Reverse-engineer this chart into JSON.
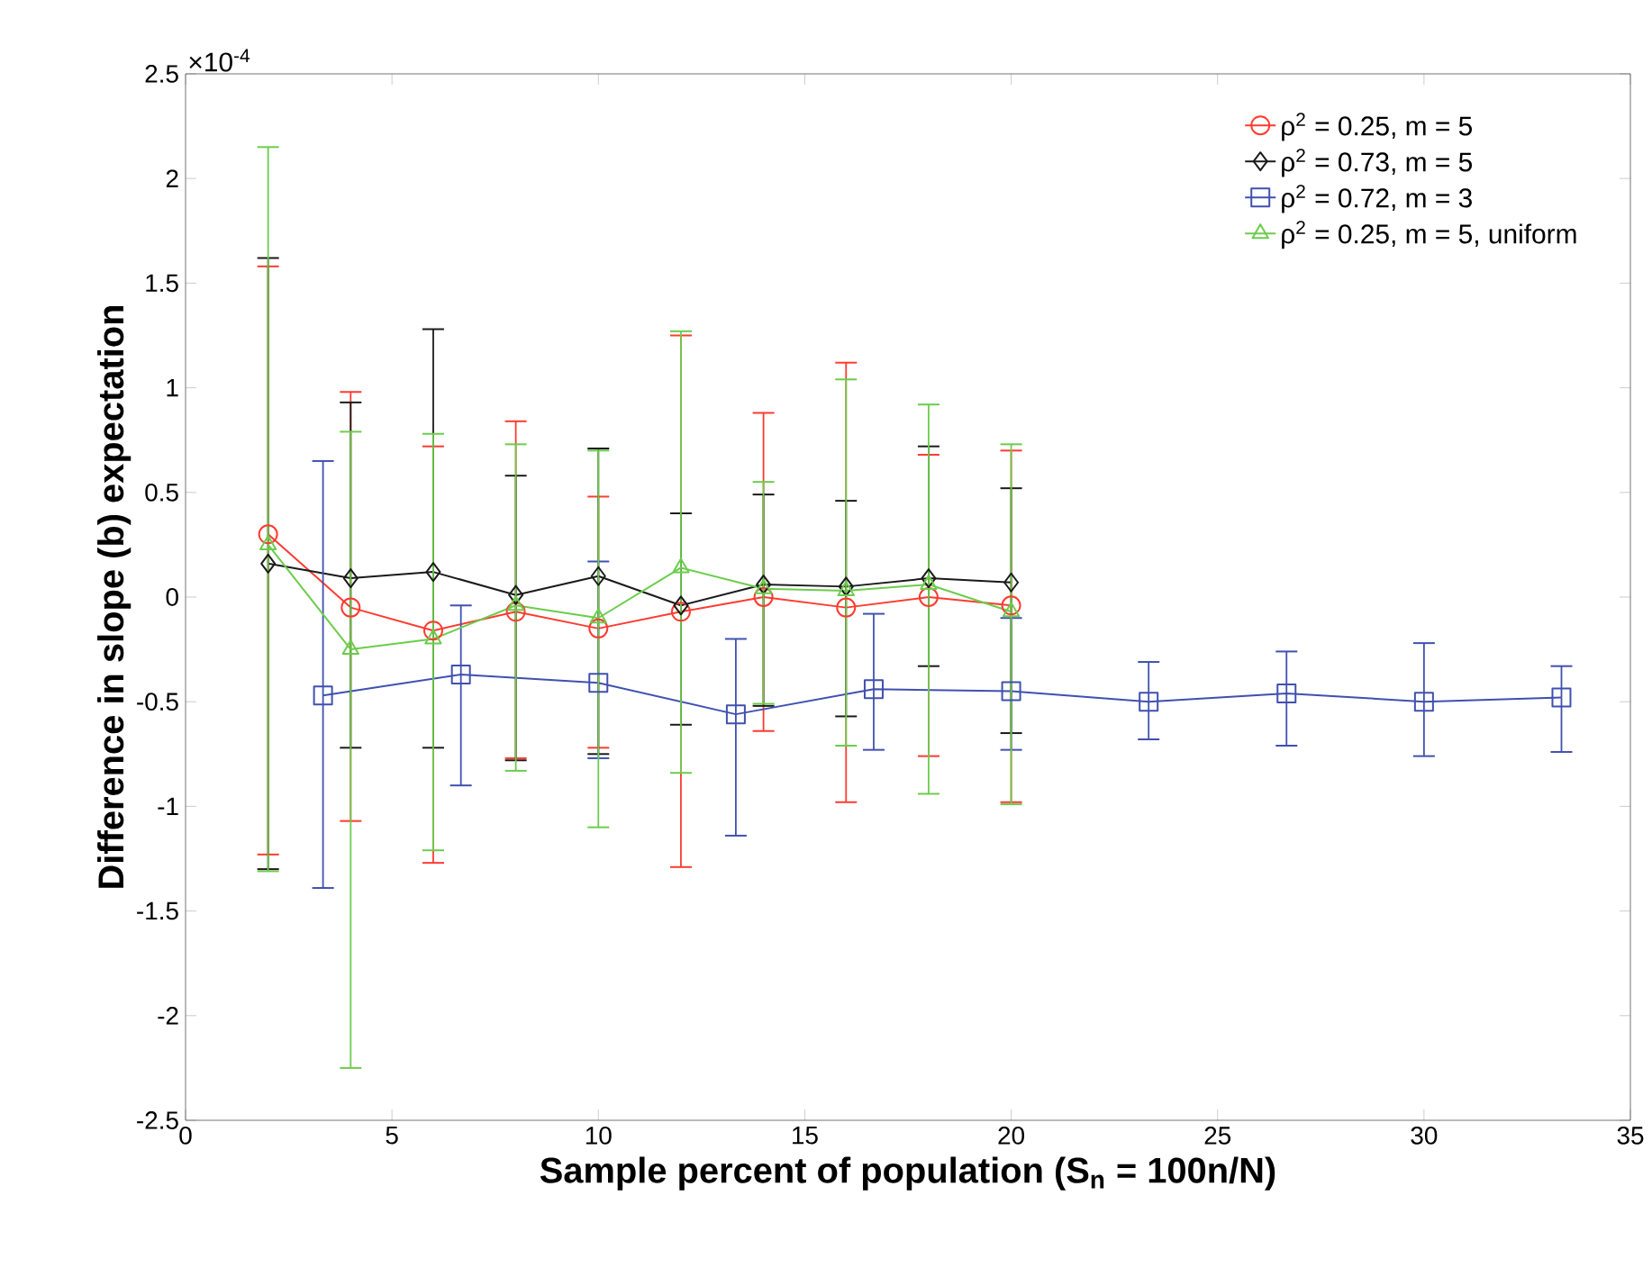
{
  "chart_data": {
    "type": "line",
    "xlabel": "Sample percent of population (S$_{n}$ = 100n/N)",
    "ylabel": "Difference in slope (b) expectation",
    "annotations": [
      "×10$^{-4}$"
    ],
    "xlim": [
      0,
      35
    ],
    "xticks": [
      0,
      5,
      10,
      15,
      20,
      25,
      30,
      35
    ],
    "ylim": [
      -2.5,
      2.5
    ],
    "yticks": [
      -2.5,
      -2,
      -1.5,
      -1,
      -0.5,
      0,
      0.5,
      1,
      1.5,
      2,
      2.5
    ],
    "legend": "top right",
    "line_style": "solid",
    "grid": false,
    "series": [
      {
        "name": "ρ$^{2}$ = 0.25, m = 5",
        "color": "#ff3b2f",
        "marker": "circle",
        "x": [
          2,
          4,
          6,
          8,
          10,
          12,
          14,
          16,
          18,
          20
        ],
        "values": [
          0.3,
          -0.05,
          -0.16,
          -0.07,
          -0.15,
          -0.07,
          0.0,
          -0.05,
          0.0,
          -0.04
        ],
        "errors": [
          [
            -1.23,
            1.58
          ],
          [
            -1.07,
            0.98
          ],
          [
            -1.27,
            0.72
          ],
          [
            -0.77,
            0.84
          ],
          [
            -0.72,
            0.48
          ],
          [
            -1.29,
            1.25
          ],
          [
            -0.64,
            0.88
          ],
          [
            -0.98,
            1.12
          ],
          [
            -0.76,
            0.68
          ],
          [
            -0.98,
            0.7
          ]
        ]
      },
      {
        "name": "ρ$^{2}$ = 0.73, m = 5",
        "color": "#1a1a1a",
        "marker": "diamond",
        "x": [
          2,
          4,
          6,
          8,
          10,
          12,
          14,
          16,
          18,
          20
        ],
        "values": [
          0.16,
          0.09,
          0.12,
          0.01,
          0.1,
          -0.04,
          0.06,
          0.05,
          0.09,
          0.07
        ],
        "errors": [
          [
            -1.3,
            1.62
          ],
          [
            -0.72,
            0.93
          ],
          [
            -0.72,
            1.28
          ],
          [
            -0.78,
            0.58
          ],
          [
            -0.75,
            0.71
          ],
          [
            -0.61,
            0.4
          ],
          [
            -0.52,
            0.49
          ],
          [
            -0.57,
            0.46
          ],
          [
            -0.33,
            0.72
          ],
          [
            -0.65,
            0.52
          ]
        ]
      },
      {
        "name": "ρ$^{2}$ = 0.72, m = 3",
        "color": "#4050b0",
        "marker": "square",
        "x": [
          3.33,
          6.67,
          10,
          13.33,
          16.67,
          20,
          23.33,
          26.67,
          30,
          33.33
        ],
        "values": [
          -0.47,
          -0.37,
          -0.41,
          -0.56,
          -0.44,
          -0.45,
          -0.5,
          -0.46,
          -0.5,
          -0.48
        ],
        "errors": [
          [
            -1.39,
            0.65
          ],
          [
            -0.9,
            -0.04
          ],
          [
            -0.77,
            0.17
          ],
          [
            -1.14,
            -0.2
          ],
          [
            -0.73,
            -0.08
          ],
          [
            -0.73,
            -0.1
          ],
          [
            -0.68,
            -0.31
          ],
          [
            -0.71,
            -0.26
          ],
          [
            -0.76,
            -0.22
          ],
          [
            -0.74,
            -0.33
          ]
        ]
      },
      {
        "name": "ρ$^{2}$ = 0.25, m = 5, uniform",
        "color": "#6ccc4c",
        "marker": "triangle",
        "x": [
          2,
          4,
          6,
          8,
          10,
          12,
          14,
          16,
          18,
          20
        ],
        "values": [
          0.25,
          -0.25,
          -0.2,
          -0.04,
          -0.1,
          0.14,
          0.04,
          0.03,
          0.06,
          -0.07
        ],
        "errors": [
          [
            -1.31,
            2.15
          ],
          [
            -2.25,
            0.79
          ],
          [
            -1.21,
            0.78
          ],
          [
            -0.83,
            0.73
          ],
          [
            -1.1,
            0.7
          ],
          [
            -0.84,
            1.27
          ],
          [
            -0.51,
            0.55
          ],
          [
            -0.71,
            1.04
          ],
          [
            -0.94,
            0.92
          ],
          [
            -0.99,
            0.73
          ]
        ]
      }
    ]
  }
}
